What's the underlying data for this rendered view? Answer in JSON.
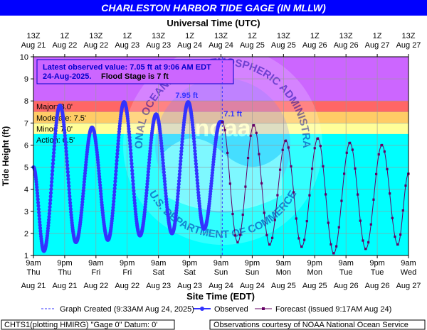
{
  "header": {
    "title": "CHARLESTON HARBOR TIDE GAGE (IN MLLW)",
    "top_axis_title": "Universal Time (UTC)",
    "bottom_axis_title": "Site Time (EDT)",
    "y_axis_title": "Tide Height (ft)"
  },
  "colors": {
    "title_bg": "#0000ff",
    "background": "#00ffff",
    "major": "#cc66ff",
    "moderate": "#ff6666",
    "minor": "#ffcc66",
    "action": "#ffff99",
    "observed": "#3333ff",
    "forecast": "#660066",
    "noaa_logo": "#9999ff"
  },
  "stages": {
    "major": {
      "label": "Major: 8.0'",
      "value": 8.0
    },
    "moderate": {
      "label": "Moderate: 7.5'",
      "value": 7.5
    },
    "minor": {
      "label": "Minor: 7.0'",
      "value": 7.0
    },
    "action": {
      "label": "Action: 6.5'",
      "value": 6.5
    }
  },
  "annotation": {
    "line1": "Latest observed value: 7.05 ft at 9:06 AM EDT",
    "line2": "24-Aug-2025.",
    "flood_stage": "Flood Stage is 7 ft",
    "peak_label": "7.95 ft",
    "latest_label": "7.1 ft"
  },
  "legend": {
    "graph_created": "Graph Created (9:33AM Aug 24, 2025)",
    "observed": "Observed",
    "forecast": "Forecast (issued 9:17AM Aug 24)"
  },
  "footer": {
    "left": "CHTS1(plotting HMIRG) \"Gage 0\" Datum: 0'",
    "right": "Observations courtesy of NOAA National Ocean Service"
  },
  "watermark": {
    "text_top": "NATIONAL OCEANIC AND ATMOSPHERIC ADMINISTRATION",
    "text_bottom": "U.S. DEPARTMENT OF COMMERCE",
    "center": "noaa"
  },
  "chart_data": {
    "type": "line",
    "title": "CHARLESTON HARBOR TIDE GAGE (IN MLLW)",
    "xlabel": "Site Time (EDT)",
    "x2label": "Universal Time (UTC)",
    "ylabel": "Tide Height (ft)",
    "ylim": [
      1,
      10
    ],
    "yticks": [
      1,
      2,
      3,
      4,
      5,
      6,
      7,
      8,
      9,
      10
    ],
    "xlim_hours": [
      0,
      144
    ],
    "x_units": "hours since 9am EDT Aug 21, 2025",
    "current_time_hours": 72.5,
    "bottom_ticks": [
      {
        "h": 0,
        "line1": "9am",
        "line2": "Thu",
        "line3": "Aug 21"
      },
      {
        "h": 12,
        "line1": "9pm",
        "line2": "Thu",
        "line3": "Aug 21"
      },
      {
        "h": 24,
        "line1": "9am",
        "line2": "Fri",
        "line3": "Aug 22"
      },
      {
        "h": 36,
        "line1": "9pm",
        "line2": "Fri",
        "line3": "Aug 22"
      },
      {
        "h": 48,
        "line1": "9am",
        "line2": "Sat",
        "line3": "Aug 23"
      },
      {
        "h": 60,
        "line1": "9pm",
        "line2": "Sat",
        "line3": "Aug 23"
      },
      {
        "h": 72,
        "line1": "9am",
        "line2": "Sun",
        "line3": "Aug 24"
      },
      {
        "h": 84,
        "line1": "9pm",
        "line2": "Sun",
        "line3": "Aug 24"
      },
      {
        "h": 96,
        "line1": "9am",
        "line2": "Mon",
        "line3": "Aug 25"
      },
      {
        "h": 108,
        "line1": "9pm",
        "line2": "Mon",
        "line3": "Aug 25"
      },
      {
        "h": 120,
        "line1": "9am",
        "line2": "Tue",
        "line3": "Aug 26"
      },
      {
        "h": 132,
        "line1": "9pm",
        "line2": "Tue",
        "line3": "Aug 26"
      },
      {
        "h": 144,
        "line1": "9am",
        "line2": "Wed",
        "line3": "Aug 27"
      }
    ],
    "top_ticks": [
      {
        "h": 0,
        "line1": "13Z",
        "line2": "Aug 21"
      },
      {
        "h": 12,
        "line1": "1Z",
        "line2": "Aug 22"
      },
      {
        "h": 24,
        "line1": "13Z",
        "line2": "Aug 22"
      },
      {
        "h": 36,
        "line1": "1Z",
        "line2": "Aug 23"
      },
      {
        "h": 48,
        "line1": "13Z",
        "line2": "Aug 23"
      },
      {
        "h": 60,
        "line1": "1Z",
        "line2": "Aug 24"
      },
      {
        "h": 72,
        "line1": "13Z",
        "line2": "Aug 24"
      },
      {
        "h": 84,
        "line1": "1Z",
        "line2": "Aug 25"
      },
      {
        "h": 96,
        "line1": "13Z",
        "line2": "Aug 25"
      },
      {
        "h": 108,
        "line1": "1Z",
        "line2": "Aug 26"
      },
      {
        "h": 120,
        "line1": "13Z",
        "line2": "Aug 26"
      },
      {
        "h": 132,
        "line1": "1Z",
        "line2": "Aug 27"
      },
      {
        "h": 144,
        "line1": "13Z",
        "line2": "Aug 27"
      }
    ],
    "series": [
      {
        "name": "Observed",
        "extrema": [
          [
            0,
            5.0
          ],
          [
            4,
            1.2
          ],
          [
            10.2,
            7.8
          ],
          [
            16.3,
            1.6
          ],
          [
            22.5,
            6.8
          ],
          [
            28.6,
            1.7
          ],
          [
            34.8,
            7.95
          ],
          [
            40.9,
            1.9
          ],
          [
            47.1,
            7.4
          ],
          [
            53.2,
            2.0
          ],
          [
            59.4,
            7.95
          ],
          [
            65.5,
            2.2
          ],
          [
            71.7,
            7.05
          ],
          [
            72.5,
            7.05
          ]
        ]
      },
      {
        "name": "Forecast",
        "extrema": [
          [
            72.5,
            7.05
          ],
          [
            78.4,
            1.6
          ],
          [
            84.6,
            6.9
          ],
          [
            90.7,
            1.5
          ],
          [
            96.9,
            6.2
          ],
          [
            103.0,
            1.4
          ],
          [
            109.2,
            6.3
          ],
          [
            115.3,
            1.1
          ],
          [
            121.5,
            6.1
          ],
          [
            127.6,
            1.3
          ],
          [
            133.8,
            6.0
          ],
          [
            139.9,
            1.5
          ],
          [
            144,
            4.7
          ]
        ]
      }
    ]
  }
}
